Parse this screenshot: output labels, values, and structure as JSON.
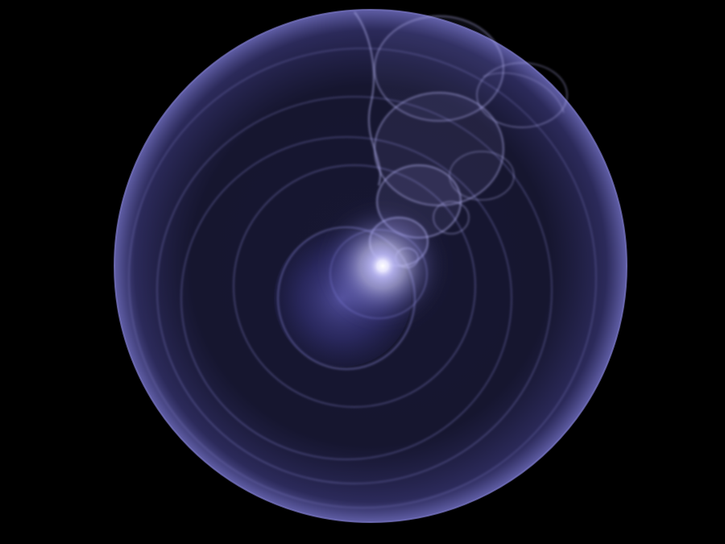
{
  "image": {
    "subject": "fractal-flame-orb",
    "colors": {
      "background": "#000000",
      "primary_glow": "#6a68c8",
      "outer_haze": "#3a3870",
      "core_highlight": "#ffffff",
      "mid_glow": "#9a98e8"
    }
  }
}
